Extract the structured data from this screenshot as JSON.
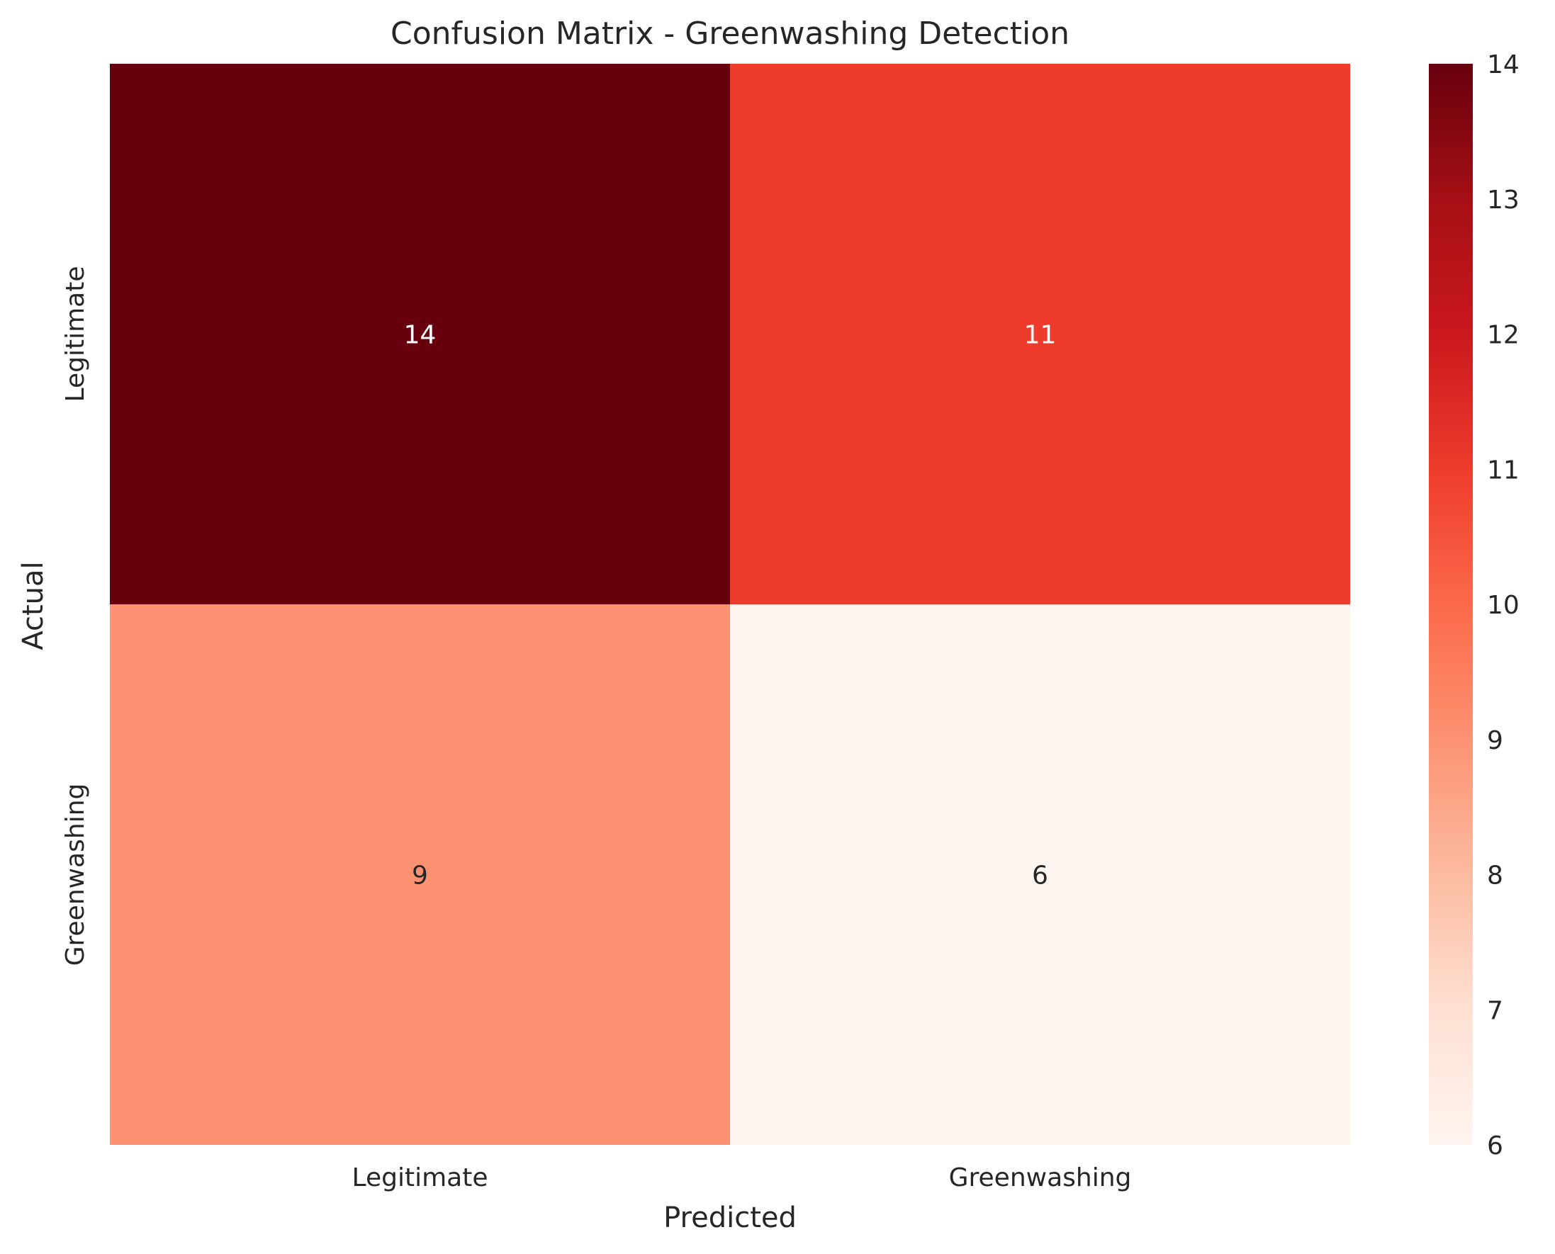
{
  "chart_data": {
    "type": "heatmap",
    "title": "Confusion Matrix - Greenwashing Detection",
    "xlabel": "Predicted",
    "ylabel": "Actual",
    "x_categories": [
      "Legitimate",
      "Greenwashing"
    ],
    "y_categories": [
      "Legitimate",
      "Greenwashing"
    ],
    "values": [
      [
        14,
        11
      ],
      [
        9,
        6
      ]
    ],
    "colormap": "Reds",
    "colorbar": {
      "min": 6,
      "max": 14,
      "ticks": [
        6,
        7,
        8,
        9,
        10,
        11,
        12,
        13,
        14
      ]
    },
    "colors": {
      "cell_14": "#67000d",
      "cell_11": "#ef3b2c",
      "cell_9": "#fc8d6f",
      "cell_6": "#fff5f0",
      "annotation_light": "#ffffff",
      "annotation_dark": "#262626"
    }
  }
}
